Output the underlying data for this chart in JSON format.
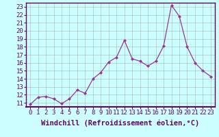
{
  "x": [
    0,
    1,
    2,
    3,
    4,
    5,
    6,
    7,
    8,
    9,
    10,
    11,
    12,
    13,
    14,
    15,
    16,
    17,
    18,
    19,
    20,
    21,
    22,
    23
  ],
  "y": [
    10.8,
    11.7,
    11.8,
    11.5,
    10.9,
    11.5,
    12.6,
    12.2,
    14.0,
    14.8,
    16.1,
    16.7,
    18.8,
    16.5,
    16.2,
    15.6,
    16.2,
    18.1,
    23.2,
    21.8,
    18.0,
    16.0,
    15.0,
    14.3
  ],
  "line_color": "#993399",
  "marker": "D",
  "marker_size": 2.0,
  "bg_color": "#ccffff",
  "grid_color": "#aaaaaa",
  "xlabel": "Windchill (Refroidissement éolien,°C)",
  "ylim": [
    10.5,
    23.5
  ],
  "xlim": [
    -0.5,
    23.5
  ],
  "yticks": [
    11,
    12,
    13,
    14,
    15,
    16,
    17,
    18,
    19,
    20,
    21,
    22,
    23
  ],
  "xticks": [
    0,
    1,
    2,
    3,
    4,
    5,
    6,
    7,
    8,
    9,
    10,
    11,
    12,
    13,
    14,
    15,
    16,
    17,
    18,
    19,
    20,
    21,
    22,
    23
  ],
  "tick_fontsize": 6.5,
  "xlabel_fontsize": 7.5
}
